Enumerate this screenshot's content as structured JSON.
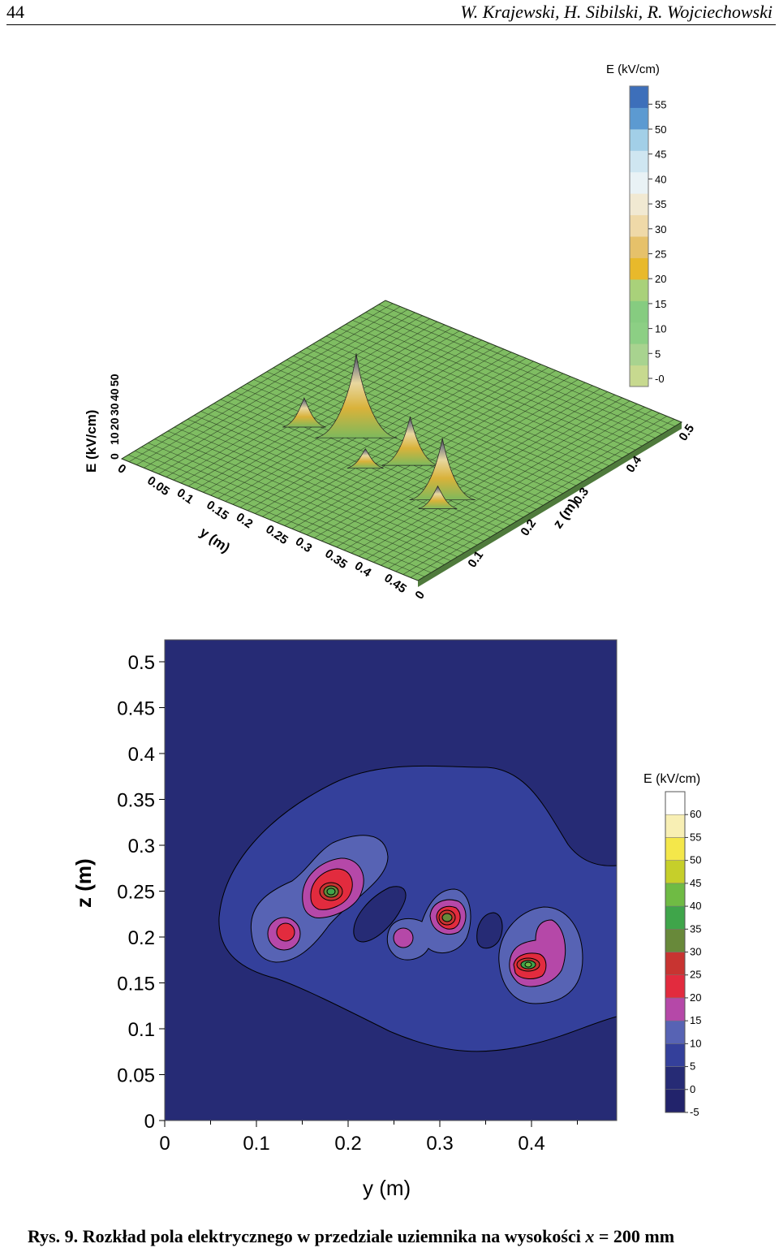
{
  "header": {
    "page_number": "44",
    "running_head": "W. Krajewski, H. Sibilski, R. Wojciechowski"
  },
  "caption": {
    "label": "Rys. 9.",
    "text": "Rozkład pola elektrycznego w przedziale uziemnika na wysokości",
    "var": "x",
    "rest": "= 200 mm"
  },
  "chart_data": [
    {
      "type": "surface",
      "zlabel": "E (kV/cm)",
      "xlabel": "y (m)",
      "ylabel": "z (m)",
      "y_ticks": [
        "0",
        "0.05",
        "0.1",
        "0.15",
        "0.2",
        "0.25",
        "0.3",
        "0.35",
        "0.4",
        "0.45"
      ],
      "z_ticks": [
        "0",
        "0.1",
        "0.2",
        "0.3",
        "0.4",
        "0.5"
      ],
      "e_ticks": [
        "0",
        "10",
        "20",
        "30",
        "40",
        "50"
      ],
      "colorbar": {
        "title": "E (kV/cm)",
        "ticks": [
          "-0",
          "5",
          "10",
          "15",
          "20",
          "25",
          "30",
          "35",
          "40",
          "45",
          "50",
          "55"
        ],
        "colors": [
          "#c7d98f",
          "#a8d38f",
          "#8ccf84",
          "#86cc80",
          "#a9d17a",
          "#e8b92b",
          "#e6c16a",
          "#efd9a8",
          "#f1e9d2",
          "#e9f2f5",
          "#cfe6f1",
          "#a2cfe7",
          "#5c9ad1",
          "#3d6fba"
        ]
      },
      "peaks": [
        {
          "y": 0.2,
          "z": 0.22,
          "E": 52
        },
        {
          "y": 0.13,
          "z": 0.2,
          "E": 18
        },
        {
          "y": 0.3,
          "z": 0.21,
          "E": 30
        },
        {
          "y": 0.26,
          "z": 0.17,
          "E": 12
        },
        {
          "y": 0.39,
          "z": 0.17,
          "E": 38
        },
        {
          "y": 0.4,
          "z": 0.15,
          "E": 14
        }
      ]
    },
    {
      "type": "contour",
      "xlabel": "y (m)",
      "ylabel": "z (m)",
      "xlim": [
        0,
        0.5
      ],
      "ylim": [
        0,
        0.5
      ],
      "x_ticks": [
        "0",
        "0.1",
        "0.2",
        "0.3",
        "0.4"
      ],
      "y_ticks": [
        "0",
        "0.05",
        "0.1",
        "0.15",
        "0.2",
        "0.25",
        "0.3",
        "0.35",
        "0.4",
        "0.45",
        "0.5"
      ],
      "colorbar": {
        "title": "E (kV/cm)",
        "levels": [
          "-5",
          "0",
          "5",
          "10",
          "15",
          "20",
          "25",
          "30",
          "35",
          "40",
          "45",
          "50",
          "55",
          "60"
        ],
        "colors": [
          "#22236b",
          "#262b75",
          "#34409b",
          "#5763b4",
          "#b548a8",
          "#e22b3e",
          "#c83431",
          "#68893a",
          "#3fa54a",
          "#6fbb44",
          "#c6cf2a",
          "#f4e74a",
          "#f8efb4",
          "#ffffff"
        ]
      }
    }
  ]
}
